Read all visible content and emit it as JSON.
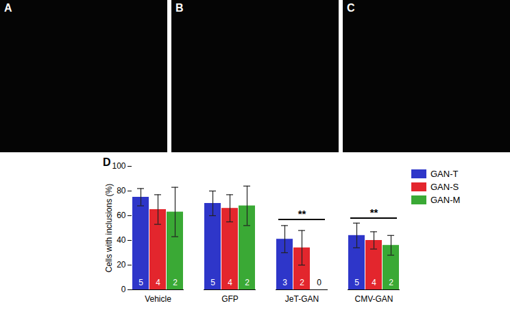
{
  "panels": [
    "A",
    "B",
    "C"
  ],
  "chart_data": {
    "type": "bar",
    "panel_label": "D",
    "ylabel": "Cells with inclusions (%)",
    "categories": [
      "Vehicle",
      "GFP",
      "JeT-GAN",
      "CMV-GAN"
    ],
    "series": [
      {
        "name": "GAN-T",
        "color": "#2e36c9",
        "values": [
          75,
          70,
          41,
          44
        ],
        "errors": [
          7,
          10,
          11,
          10
        ],
        "n": [
          5,
          5,
          3,
          5
        ]
      },
      {
        "name": "GAN-S",
        "color": "#e3262d",
        "values": [
          65,
          66,
          34,
          40
        ],
        "errors": [
          12,
          11,
          14,
          7
        ],
        "n": [
          4,
          4,
          2,
          4
        ]
      },
      {
        "name": "GAN-M",
        "color": "#3aa935",
        "values": [
          63,
          68,
          null,
          36
        ],
        "errors": [
          20,
          16,
          null,
          8
        ],
        "n": [
          2,
          2,
          0,
          2
        ]
      }
    ],
    "annotations": [
      {
        "category": "JeT-GAN",
        "text": "**",
        "y": 57
      },
      {
        "category": "CMV-GAN",
        "text": "**",
        "y": 58
      }
    ],
    "ylim": [
      0,
      100
    ],
    "yticks": [
      0,
      20,
      40,
      60,
      80,
      100
    ],
    "legend": "right"
  }
}
